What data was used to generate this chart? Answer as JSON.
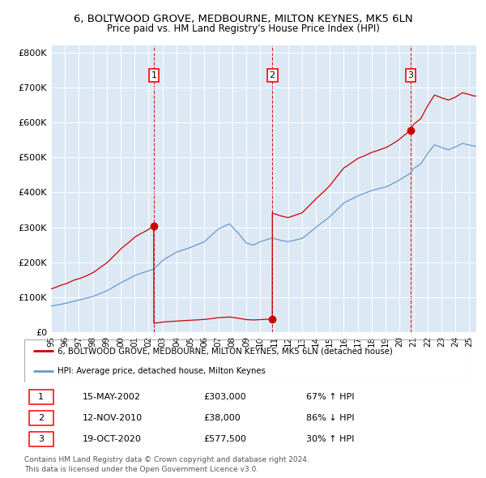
{
  "title_line1": "6, BOLTWOOD GROVE, MEDBOURNE, MILTON KEYNES, MK5 6LN",
  "title_line2": "Price paid vs. HM Land Registry's House Price Index (HPI)",
  "background_color": "#dce9f5",
  "plot_bg_color": "#dce9f5",
  "ylim": [
    0,
    820000
  ],
  "yticks": [
    0,
    100000,
    200000,
    300000,
    400000,
    500000,
    600000,
    700000,
    800000
  ],
  "ytick_labels": [
    "£0",
    "£100K",
    "£200K",
    "£300K",
    "£400K",
    "£500K",
    "£600K",
    "£700K",
    "£800K"
  ],
  "sale_dates": [
    2002.37,
    2010.87,
    2020.79
  ],
  "sale_prices": [
    303000,
    38000,
    577500
  ],
  "sale_labels": [
    "1",
    "2",
    "3"
  ],
  "legend_line1": "6, BOLTWOOD GROVE, MEDBOURNE, MILTON KEYNES, MK5 6LN (detached house)",
  "legend_line2": "HPI: Average price, detached house, Milton Keynes",
  "table_rows": [
    [
      "1",
      "15-MAY-2002",
      "£303,000",
      "67% ↑ HPI"
    ],
    [
      "2",
      "12-NOV-2010",
      "£38,000",
      "86% ↓ HPI"
    ],
    [
      "3",
      "19-OCT-2020",
      "£577,500",
      "30% ↑ HPI"
    ]
  ],
  "footer_line1": "Contains HM Land Registry data © Crown copyright and database right 2024.",
  "footer_line2": "This data is licensed under the Open Government Licence v3.0.",
  "red_line_color": "#cc0000",
  "blue_line_color": "#6699cc",
  "dot_color": "#cc0000",
  "dashed_color": "#cc0000",
  "xmin": 1995.0,
  "xmax": 2025.5,
  "hpi_anchors_x": [
    1995.0,
    1996.0,
    1997.0,
    1998.0,
    1999.0,
    2000.0,
    2001.0,
    2002.37,
    2003.0,
    2004.0,
    2005.0,
    2006.0,
    2007.0,
    2007.8,
    2008.5,
    2009.0,
    2009.5,
    2010.0,
    2010.87,
    2011.5,
    2012.0,
    2013.0,
    2014.0,
    2015.0,
    2016.0,
    2017.0,
    2018.0,
    2019.0,
    2020.0,
    2020.79,
    2021.0,
    2021.5,
    2022.0,
    2022.5,
    2023.0,
    2023.5,
    2024.0,
    2024.5,
    2025.0,
    2025.3
  ],
  "hpi_anchors_y": [
    75000,
    82000,
    92000,
    102000,
    118000,
    142000,
    162000,
    181000,
    205000,
    228000,
    242000,
    258000,
    295000,
    310000,
    280000,
    255000,
    248000,
    258000,
    270000,
    262000,
    258000,
    268000,
    300000,
    330000,
    370000,
    390000,
    405000,
    415000,
    435000,
    455000,
    468000,
    480000,
    510000,
    535000,
    528000,
    522000,
    530000,
    540000,
    535000,
    532000
  ]
}
